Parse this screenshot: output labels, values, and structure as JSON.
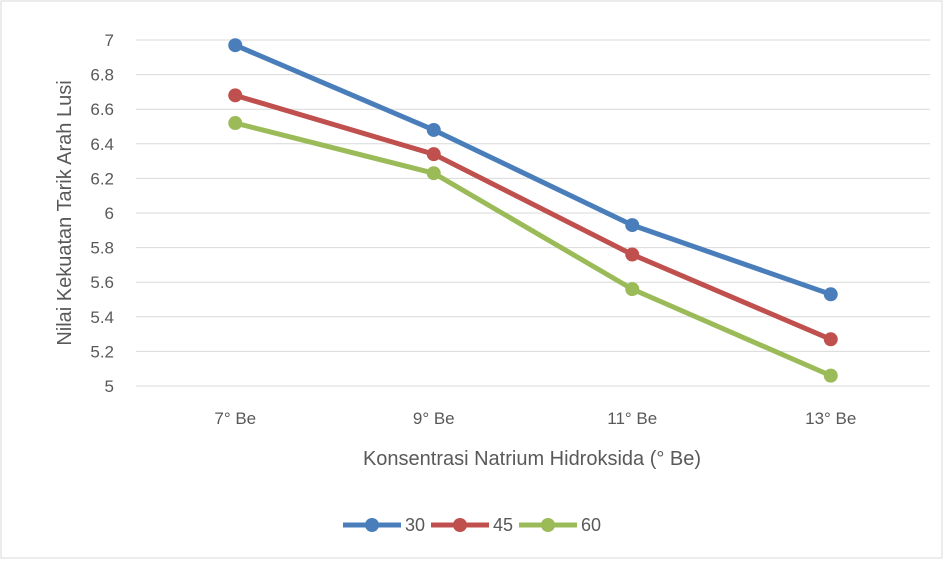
{
  "chart_data": {
    "type": "line",
    "title": "",
    "xlabel": "Konsentrasi Natrium Hidroksida (° Be)",
    "ylabel": "Nilai Kekuatan Tarik Arah Lusi",
    "categories": [
      "7° Be",
      "9° Be",
      "11° Be",
      "13° Be"
    ],
    "ylim": [
      5,
      7
    ],
    "yticks": [
      5,
      5.2,
      5.4,
      5.6,
      5.8,
      6,
      6.2,
      6.4,
      6.6,
      6.8,
      7
    ],
    "ytick_labels": [
      "5",
      "5.2",
      "5.4",
      "5.6",
      "5.8",
      "6",
      "6.2",
      "6.4",
      "6.6",
      "6.8",
      "7"
    ],
    "grid": true,
    "legend_position": "bottom",
    "series": [
      {
        "name": "30",
        "color": "#4a7ebb",
        "values": [
          6.97,
          6.48,
          5.93,
          5.53
        ]
      },
      {
        "name": "45",
        "color": "#c0504d",
        "values": [
          6.68,
          6.34,
          5.76,
          5.27
        ]
      },
      {
        "name": "60",
        "color": "#9bbb59",
        "values": [
          6.52,
          6.23,
          5.56,
          5.06
        ]
      }
    ]
  }
}
